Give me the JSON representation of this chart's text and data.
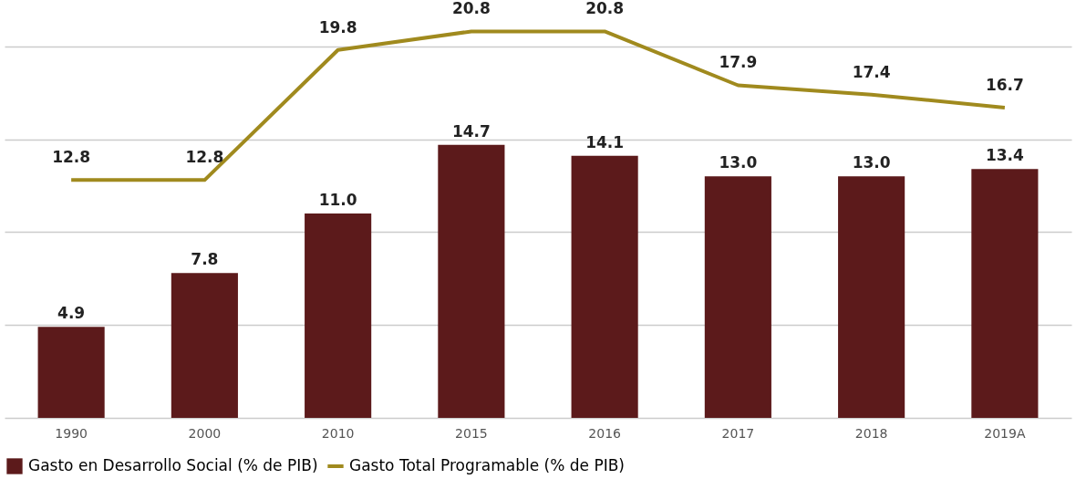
{
  "chart_data": {
    "type": "bar",
    "categories": [
      "1990",
      "2000",
      "2010",
      "2015",
      "2016",
      "2017",
      "2018",
      "2019A"
    ],
    "series": [
      {
        "name": "Gasto en Desarrollo Social (% de PIB)",
        "color": "#5c1a1b",
        "values": [
          4.9,
          7.8,
          11.0,
          14.7,
          14.1,
          13.0,
          13.0,
          13.4
        ],
        "value_labels": [
          "4.9",
          "7.8",
          "11.0",
          "14.7",
          "14.1",
          "13.0",
          "13.0",
          "13.4"
        ]
      },
      {
        "name": "Gasto Total Programable (% de PIB)",
        "type": "line",
        "color": "#a08a1e",
        "values": [
          12.8,
          12.8,
          19.8,
          20.8,
          20.8,
          17.9,
          17.4,
          16.7
        ],
        "value_labels": [
          "12.8",
          "12.8",
          "19.8",
          "20.8",
          "20.8",
          "17.9",
          "17.4",
          "16.7"
        ]
      }
    ],
    "yticks": [
      {
        "value": 0,
        "label": null
      },
      {
        "value": 5,
        "label": null
      },
      {
        "value": 10,
        "label": null
      },
      {
        "value": 15,
        "label": null
      },
      {
        "value": 20,
        "label": null
      }
    ],
    "tick_labels": "x",
    "grid": "y",
    "legend": "bottom",
    "marker": "none"
  }
}
